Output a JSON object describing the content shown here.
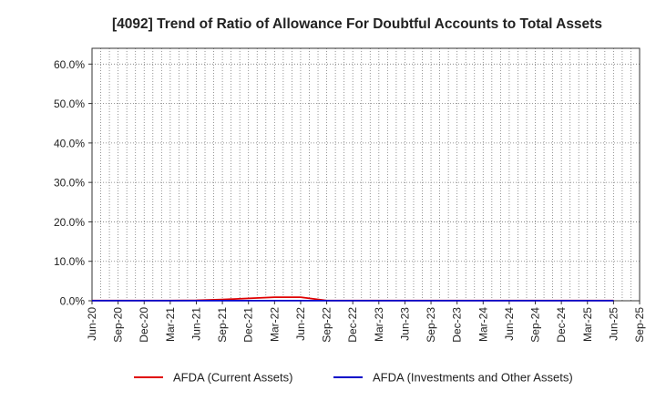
{
  "chart_data": {
    "type": "line",
    "title": "[4092]  Trend of Ratio of Allowance For Doubtful Accounts to Total Assets",
    "xlabel": "",
    "ylabel": "",
    "x_ticks": [
      "Jun-20",
      "Sep-20",
      "Dec-20",
      "Mar-21",
      "Jun-21",
      "Sep-21",
      "Dec-21",
      "Mar-22",
      "Jun-22",
      "Sep-22",
      "Dec-22",
      "Mar-23",
      "Jun-23",
      "Sep-23",
      "Dec-23",
      "Mar-24",
      "Jun-24",
      "Sep-24",
      "Dec-24",
      "Mar-25",
      "Jun-25",
      "Sep-25"
    ],
    "y_ticks": [
      "0.0%",
      "10.0%",
      "20.0%",
      "30.0%",
      "40.0%",
      "50.0%",
      "60.0%"
    ],
    "y_tick_values": [
      0,
      10,
      20,
      30,
      40,
      50,
      60
    ],
    "ylim": [
      0,
      64
    ],
    "grid": true,
    "legend_position": "bottom",
    "series": [
      {
        "name": "AFDA (Current Assets)",
        "color": "#e00000",
        "x": [
          "Jun-20",
          "Sep-20",
          "Dec-20",
          "Mar-21",
          "Jun-21",
          "Sep-21",
          "Dec-21",
          "Mar-22",
          "Jun-22",
          "Sep-22",
          "Dec-22",
          "Mar-23",
          "Jun-23",
          "Sep-23",
          "Dec-23",
          "Mar-24",
          "Jun-24",
          "Sep-24",
          "Dec-24",
          "Mar-25",
          "Jun-25"
        ],
        "values": [
          0.05,
          0.05,
          0.05,
          0.05,
          0.1,
          0.3,
          0.6,
          0.9,
          0.9,
          0.05,
          0.05,
          0.05,
          0.05,
          0.05,
          0.05,
          0.05,
          0.05,
          0.05,
          0.05,
          0.05,
          0.05
        ]
      },
      {
        "name": "AFDA (Investments and Other Assets)",
        "color": "#0000c8",
        "x": [
          "Jun-20",
          "Sep-20",
          "Dec-20",
          "Mar-21",
          "Jun-21",
          "Sep-21",
          "Dec-21",
          "Mar-22",
          "Jun-22",
          "Sep-22",
          "Dec-22",
          "Mar-23",
          "Jun-23",
          "Sep-23",
          "Dec-23",
          "Mar-24",
          "Jun-24",
          "Sep-24",
          "Dec-24",
          "Mar-25",
          "Jun-25"
        ],
        "values": [
          0.02,
          0.02,
          0.02,
          0.02,
          0.02,
          0.02,
          0.02,
          0.02,
          0.02,
          0.02,
          0.02,
          0.02,
          0.02,
          0.02,
          0.02,
          0.02,
          0.02,
          0.02,
          0.02,
          0.02,
          0.02
        ]
      }
    ]
  }
}
